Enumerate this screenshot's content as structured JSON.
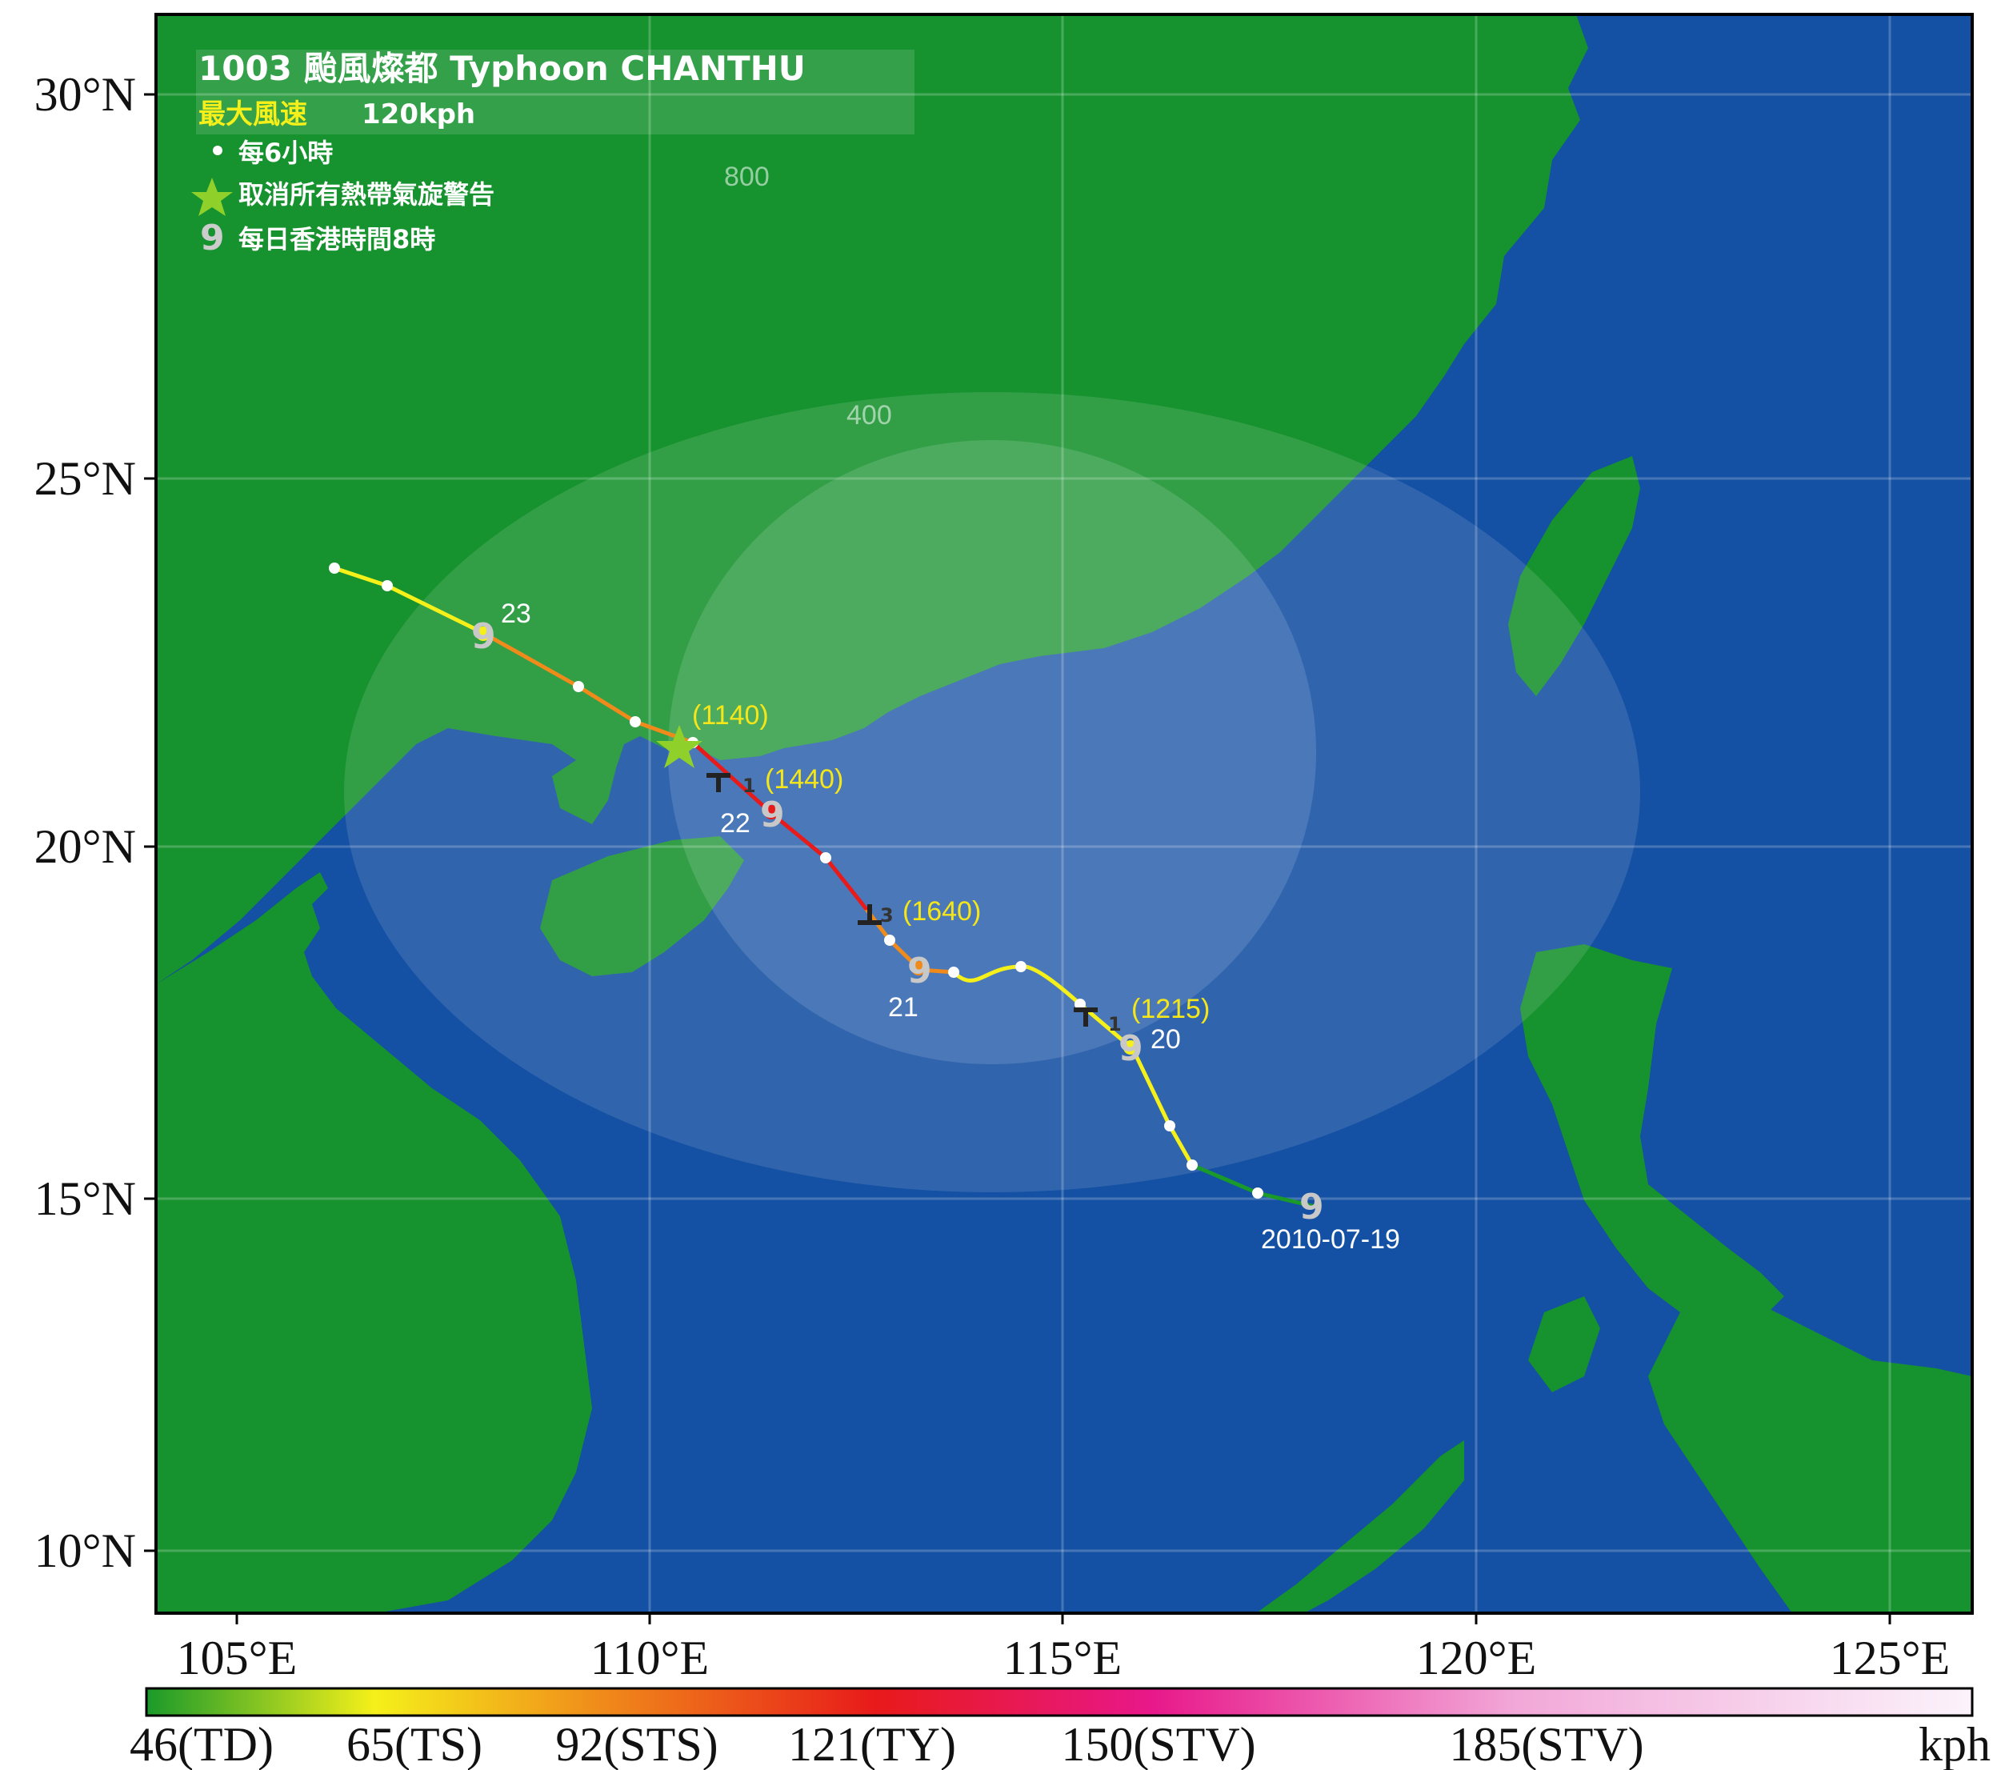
{
  "header": {
    "title": "1003 颱風燦都 Typhoon CHANTHU",
    "max_wind_label": "最大風速",
    "max_wind_value": "120kph"
  },
  "legend": {
    "six_hourly": "每6小時",
    "warnings_cancelled": "取消所有熱帶氣旋警告",
    "daily_8am": "每日香港時間8時"
  },
  "watermark": "",
  "range_rings": [
    "800",
    "400"
  ],
  "axes": {
    "lat_labels": [
      "30°N",
      "25°N",
      "20°N",
      "15°N",
      "10°N"
    ],
    "lon_labels": [
      "105°E",
      "110°E",
      "115°E",
      "120°E",
      "125°E"
    ]
  },
  "track": {
    "day_labels": [
      "23",
      "22",
      "21",
      "20",
      "2010-07-19"
    ],
    "time_labels": [
      "(1140)",
      "(1440)",
      "(1640)",
      "(1215)"
    ],
    "signal_numbers": [
      "1",
      "3",
      "1"
    ]
  },
  "colorbar": {
    "ticks": [
      "46(TD)",
      "65(TS)",
      "92(STS)",
      "121(TY)",
      "150(STV)",
      "185(STV)"
    ],
    "unit": "kph",
    "colors": [
      "#1a9a2a",
      "#f5f01a",
      "#f08a1a",
      "#e81a1a",
      "#e8188a",
      "#ffffff"
    ]
  },
  "colors": {
    "sea": "#1450a3",
    "land": "#16922e",
    "title_yellow": "#f5f01a",
    "time_label_yellow": "#f5e61a"
  }
}
